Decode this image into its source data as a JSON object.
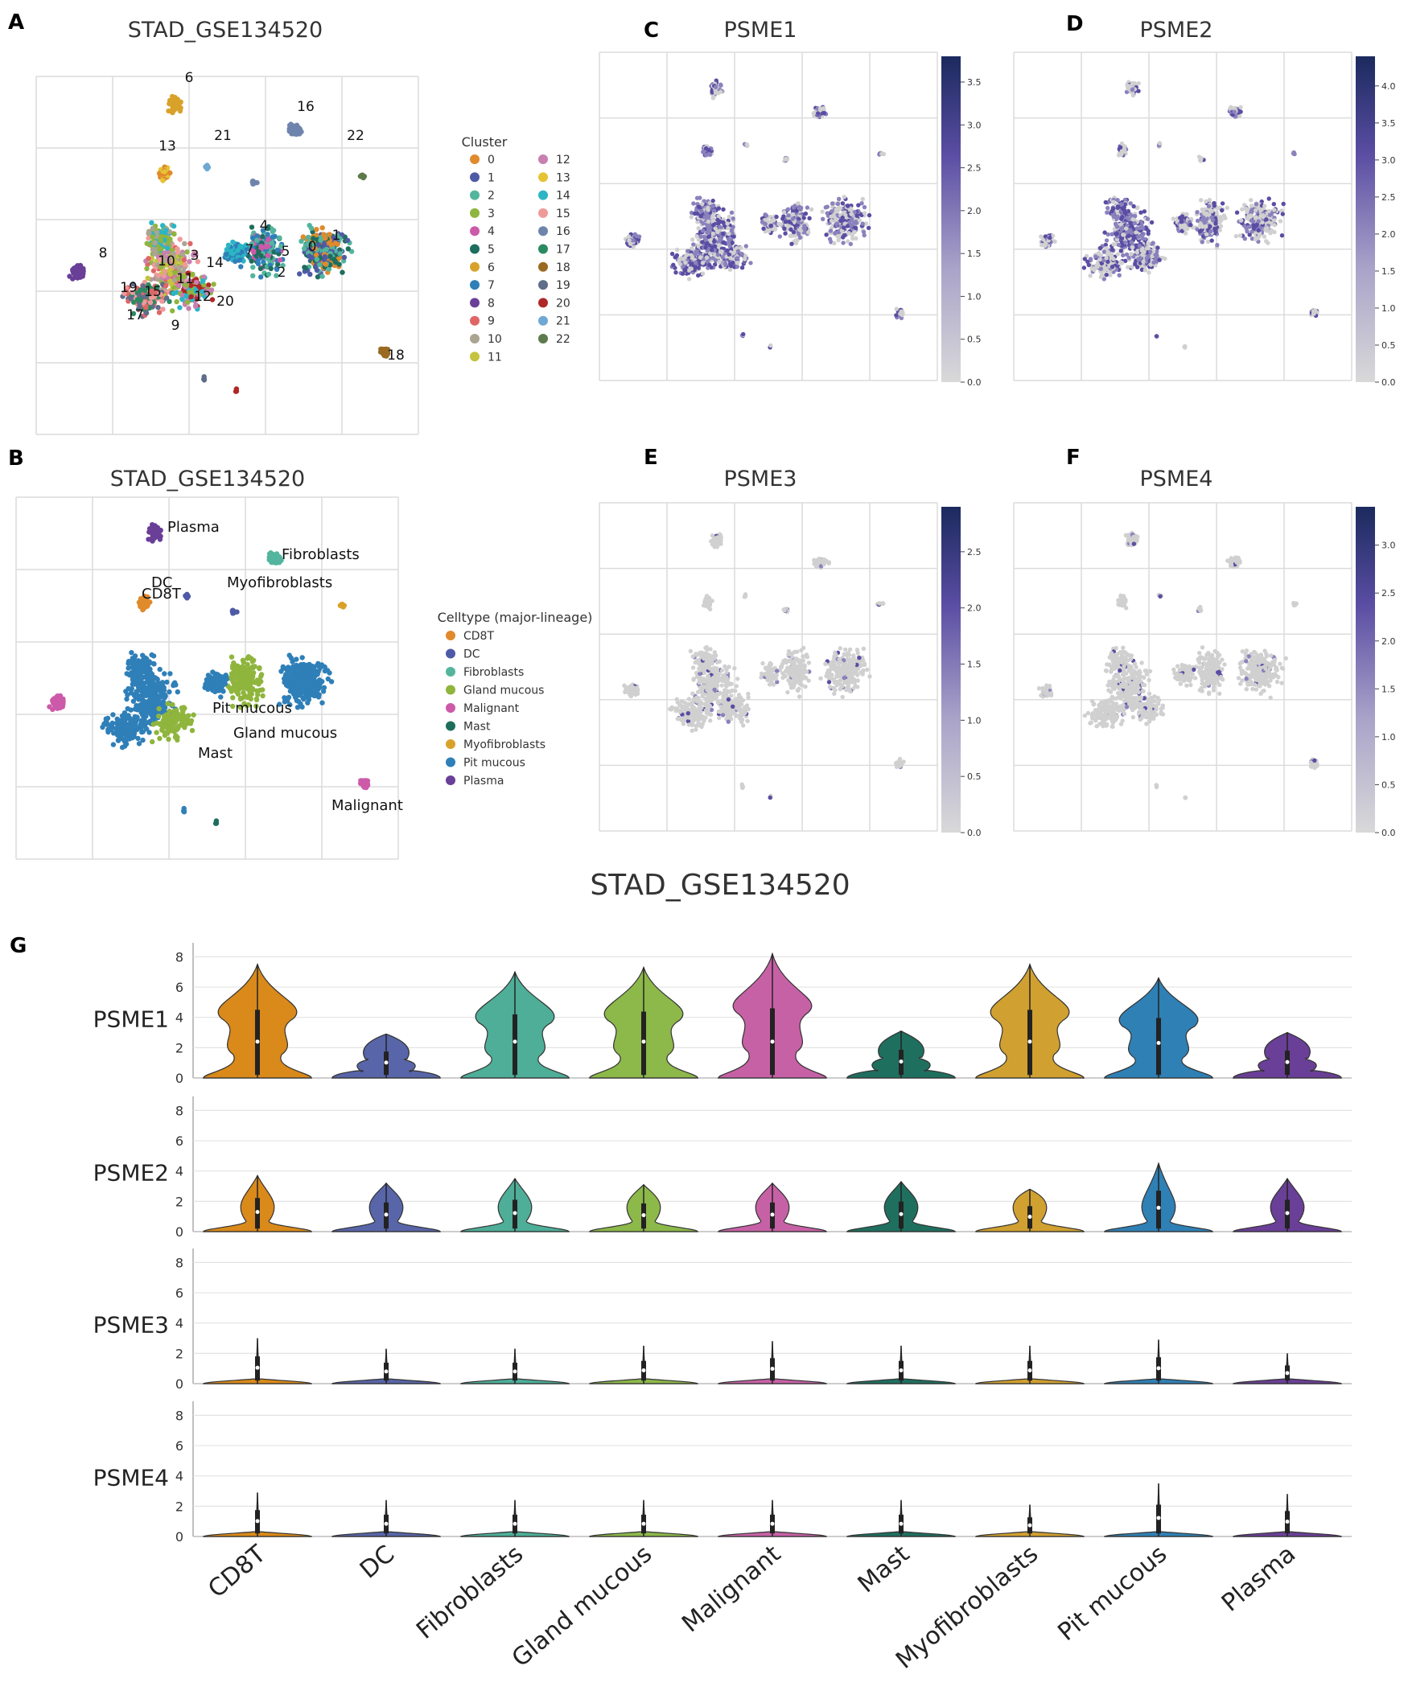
{
  "panels": {
    "A": {
      "letter": "A",
      "title": "STAD_GSE134520",
      "legend_title": "Cluster",
      "clusters": [
        "0",
        "1",
        "2",
        "3",
        "4",
        "5",
        "6",
        "7",
        "8",
        "9",
        "10",
        "11",
        "12",
        "13",
        "14",
        "15",
        "16",
        "17",
        "18",
        "19",
        "20",
        "21",
        "22"
      ],
      "colors": [
        "#e08a2c",
        "#4f5aa6",
        "#53b59d",
        "#8fb53d",
        "#cc5aa9",
        "#1e6e5e",
        "#d8a22a",
        "#2f7fb8",
        "#6a3f97",
        "#e06666",
        "#aaa592",
        "#c4c43e",
        "#c780b0",
        "#e6c335",
        "#2bb5c5",
        "#ef9a9a",
        "#6f84ad",
        "#2a8a62",
        "#9a6a22",
        "#5f6d8a",
        "#b02727",
        "#6fa8d2",
        "#5e7a4c"
      ]
    },
    "B": {
      "letter": "B",
      "title": "STAD_GSE134520",
      "legend_title": "Celltype (major-lineage)",
      "celltypes": [
        "CD8T",
        "DC",
        "Fibroblasts",
        "Gland mucous",
        "Malignant",
        "Mast",
        "Myofibroblasts",
        "Pit mucous",
        "Plasma"
      ],
      "colors": [
        "#e08a2c",
        "#4f5aa6",
        "#53b59d",
        "#8fb53d",
        "#cc5aa9",
        "#1e6e5e",
        "#d8a22a",
        "#2f7fb8",
        "#6a3f97"
      ],
      "map_labels": [
        "Plasma",
        "Fibroblasts",
        "DC",
        "Myofibroblasts",
        "CD8T",
        "Pit mucous",
        "Gland mucous",
        "Mast",
        "Malignant"
      ]
    },
    "C": {
      "letter": "C",
      "title": "PSME1",
      "colorbar_ticks": [
        "0.0",
        "0.5",
        "1.0",
        "1.5",
        "2.0",
        "2.5",
        "3.0",
        "3.5"
      ]
    },
    "D": {
      "letter": "D",
      "title": "PSME2",
      "colorbar_ticks": [
        "0.0",
        "0.5",
        "1.0",
        "1.5",
        "2.0",
        "2.5",
        "3.0",
        "3.5",
        "4.0"
      ]
    },
    "E": {
      "letter": "E",
      "title": "PSME3",
      "colorbar_ticks": [
        "0.0",
        "0.5",
        "1.0",
        "1.5",
        "2.0",
        "2.5"
      ]
    },
    "F": {
      "letter": "F",
      "title": "PSME4",
      "colorbar_ticks": [
        "0.0",
        "0.5",
        "1.0",
        "1.5",
        "2.0",
        "2.5",
        "3.0"
      ]
    },
    "G": {
      "letter": "G",
      "title": "STAD_GSE134520"
    }
  },
  "chart_data": [
    {
      "type": "scatter",
      "panel": "A",
      "title": "STAD_GSE134520",
      "legend": "Cluster",
      "note": "UMAP embedding colored by cluster 0-22"
    },
    {
      "type": "scatter",
      "panel": "B",
      "title": "STAD_GSE134520",
      "legend": "Celltype (major-lineage)",
      "categories": [
        "CD8T",
        "DC",
        "Fibroblasts",
        "Gland mucous",
        "Malignant",
        "Mast",
        "Myofibroblasts",
        "Pit mucous",
        "Plasma"
      ]
    },
    {
      "type": "heatmap",
      "panel": "C",
      "title": "PSME1",
      "colorbar_range": [
        0,
        3.8
      ]
    },
    {
      "type": "heatmap",
      "panel": "D",
      "title": "PSME2",
      "colorbar_range": [
        0,
        4.4
      ]
    },
    {
      "type": "heatmap",
      "panel": "E",
      "title": "PSME3",
      "colorbar_range": [
        0,
        2.9
      ]
    },
    {
      "type": "heatmap",
      "panel": "F",
      "title": "PSME4",
      "colorbar_range": [
        0,
        3.4
      ]
    },
    {
      "type": "violin",
      "panel": "G",
      "title": "STAD_GSE134520",
      "categories": [
        "CD8T",
        "DC",
        "Fibroblasts",
        "Gland mucous",
        "Malignant",
        "Mast",
        "Myofibroblasts",
        "Pit mucous",
        "Plasma"
      ],
      "colors": [
        "#d98a1a",
        "#5865a8",
        "#4eae98",
        "#8db84a",
        "#c761a6",
        "#1f6f5f",
        "#d0a030",
        "#2f80b5",
        "#6a3f97"
      ],
      "yticks": [
        "0",
        "2",
        "4",
        "6",
        "8"
      ],
      "ylim": [
        0,
        8.5
      ],
      "series": [
        {
          "name": "PSME1",
          "max": [
            7.5,
            2.9,
            7.0,
            7.3,
            8.2,
            3.1,
            7.5,
            6.6,
            3.0
          ]
        },
        {
          "name": "PSME2",
          "max": [
            3.7,
            3.2,
            3.5,
            3.1,
            3.2,
            3.3,
            2.8,
            4.5,
            3.5
          ]
        },
        {
          "name": "PSME3",
          "max": [
            3.0,
            2.3,
            2.3,
            2.5,
            2.8,
            2.5,
            2.5,
            2.9,
            2.0
          ]
        },
        {
          "name": "PSME4",
          "max": [
            2.9,
            2.4,
            2.4,
            2.4,
            2.4,
            2.4,
            2.1,
            3.5,
            2.8
          ]
        }
      ]
    }
  ]
}
